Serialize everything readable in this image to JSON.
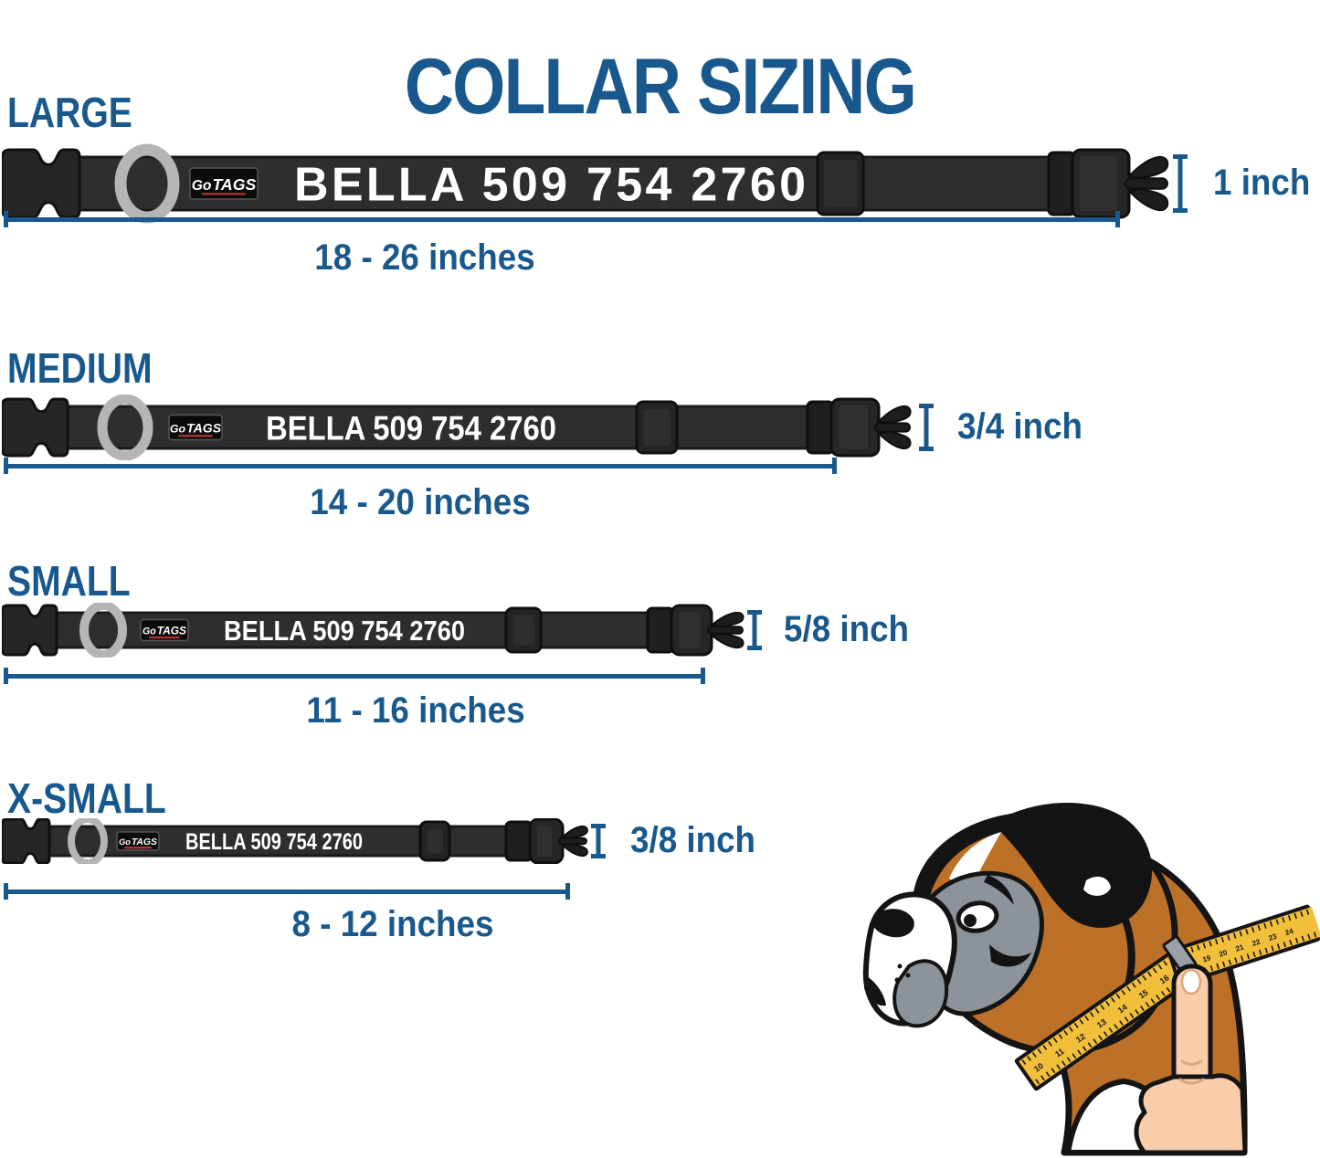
{
  "title": "COLLAR SIZING",
  "collar_text": "BELLA 509 754 2760",
  "brand": {
    "go": "Go",
    "tags": "TAGS"
  },
  "colors": {
    "accent": "#19588C",
    "collar": "#2E2E2E",
    "tape": "#F2BF3A",
    "dog_tan": "#BD7028",
    "dog_gray": "#8D939B",
    "skin": "#F9CDA9"
  },
  "sizes": [
    {
      "id": "large",
      "label": "LARGE",
      "width_label": "1 inch",
      "range_label": "18 - 26 inches"
    },
    {
      "id": "medium",
      "label": "MEDIUM",
      "width_label": "3/4 inch",
      "range_label": "14 - 20 inches"
    },
    {
      "id": "small",
      "label": "SMALL",
      "width_label": "5/8 inch",
      "range_label": "11 - 16 inches"
    },
    {
      "id": "x-small",
      "label": "X-SMALL",
      "width_label": "3/8 inch",
      "range_label": "8 - 12 inches"
    }
  ],
  "illustration": {
    "description": "Boxer dog head measured around the neck with a yellow tape held by a hand",
    "tape_numbers": [
      "10",
      "11",
      "12",
      "13",
      "14",
      "15",
      "16",
      "17",
      "18",
      "19",
      "20",
      "21",
      "22",
      "23",
      "24"
    ]
  }
}
